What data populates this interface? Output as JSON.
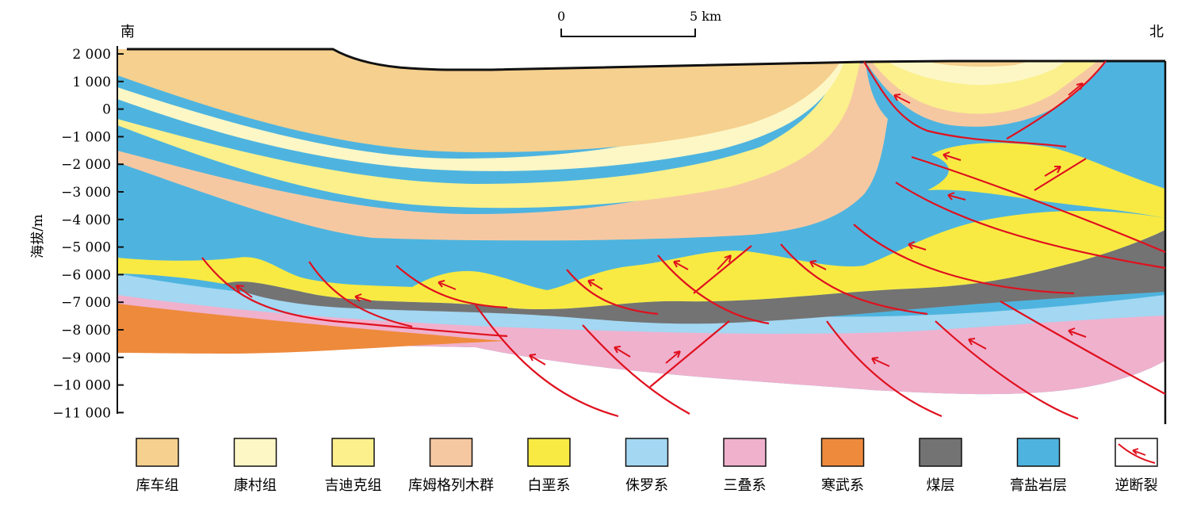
{
  "directions": {
    "south": "南",
    "north": "北"
  },
  "scale_bar": {
    "start": "0",
    "end": "5 km"
  },
  "axis": {
    "ylabel": "海拔/m",
    "ticks": [
      "2 000",
      "1 000",
      "0",
      "−1 000",
      "−2 000",
      "−3 000",
      "−4 000",
      "−5 000",
      "−6 000",
      "−7 000",
      "−8 000",
      "−9 000",
      "−10 000",
      "−11 000"
    ]
  },
  "legend": [
    {
      "label": "库车组",
      "color": "#f5d08e"
    },
    {
      "label": "康村组",
      "color": "#fdf7c6"
    },
    {
      "label": "吉迪克组",
      "color": "#fbf08c"
    },
    {
      "label": "库姆格列木群",
      "color": "#f6c8a2"
    },
    {
      "label": "白垩系",
      "color": "#f8ea43"
    },
    {
      "label": "侏罗系",
      "color": "#a3d7f2"
    },
    {
      "label": "三叠系",
      "color": "#f0b1cd"
    },
    {
      "label": "寒武系",
      "color": "#ee8a3c"
    },
    {
      "label": "煤层",
      "color": "#737373"
    },
    {
      "label": "膏盐岩层",
      "color": "#4eb4df"
    },
    {
      "label": "逆断裂",
      "color": "#e0101e"
    }
  ]
}
